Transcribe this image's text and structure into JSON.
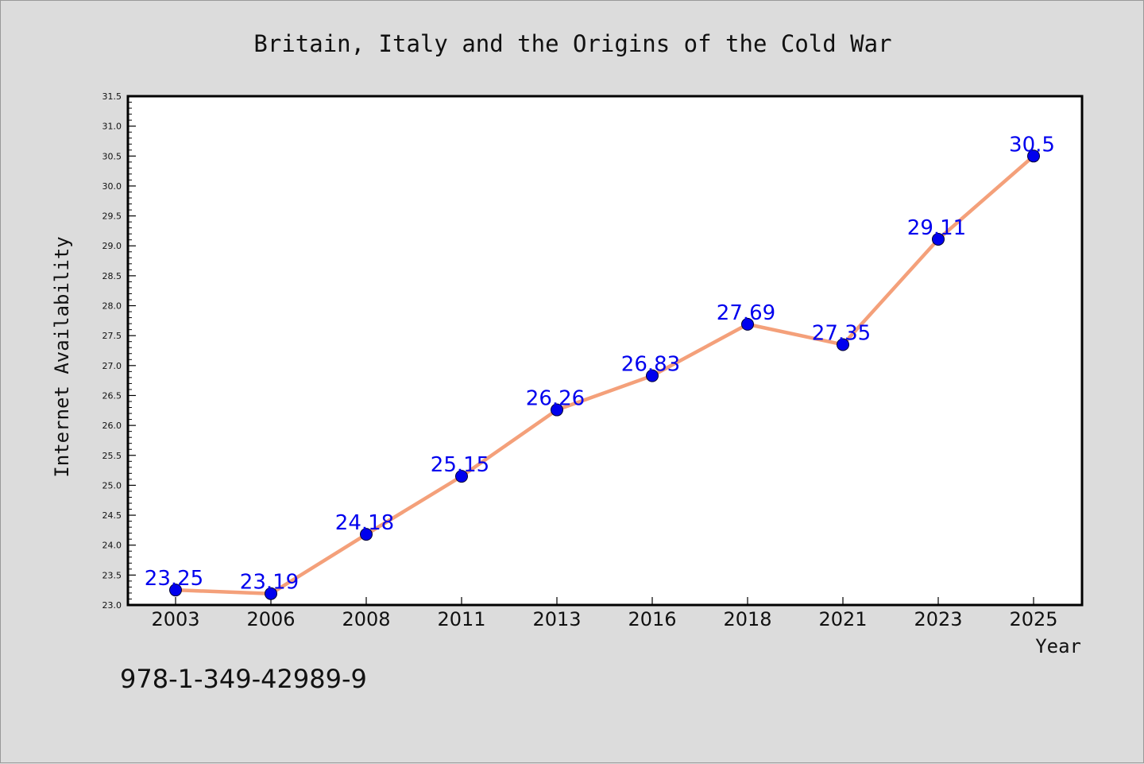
{
  "chart_data": {
    "type": "line",
    "title": "Britain, Italy and the Origins of the Cold War",
    "xlabel": "Year",
    "ylabel": "Internet Availability",
    "categories": [
      "2003",
      "2006",
      "2008",
      "2011",
      "2013",
      "2016",
      "2018",
      "2021",
      "2023",
      "2025"
    ],
    "series": [
      {
        "values": [
          23.25,
          23.19,
          24.18,
          25.15,
          26.26,
          26.83,
          27.69,
          27.35,
          29.11,
          30.5
        ]
      }
    ],
    "data_labels": [
      "23.25",
      "23.19",
      "24.18",
      "25.15",
      "26.26",
      "26.83",
      "27.69",
      "27.35",
      "29.11",
      "30.5"
    ],
    "ylim": [
      23.0,
      31.5
    ],
    "yticks": [
      "23.0",
      "23.5",
      "24.0",
      "24.5",
      "25.0",
      "25.5",
      "26.0",
      "26.5",
      "27.0",
      "27.5",
      "28.0",
      "28.5",
      "29.0",
      "29.5",
      "30.0",
      "30.5",
      "31.0",
      "31.5"
    ],
    "grid": false,
    "colors": {
      "line": "#f4a07a",
      "marker": "#0000ee",
      "data_label": "#0000ee",
      "background": "#dcdcdc",
      "plot_background": "#ffffff"
    }
  },
  "footer": {
    "isbn": "978-1-349-42989-9"
  }
}
